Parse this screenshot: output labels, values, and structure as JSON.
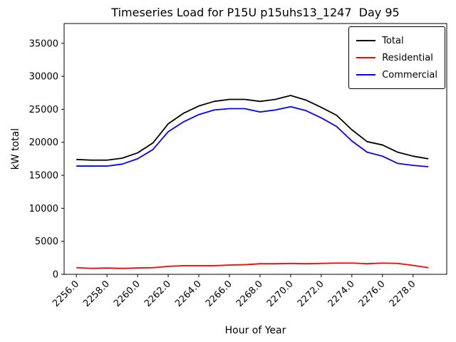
{
  "chart_data": {
    "type": "line",
    "title": "Timeseries Load for P15U p15uhs13_1247  Day 95",
    "xlabel": "Hour of Year",
    "ylabel": "kW total",
    "grid": false,
    "legend_position": "upper right",
    "xlim": [
      2255.2,
      2280.2
    ],
    "ylim": [
      0,
      38000
    ],
    "x": [
      2256,
      2257,
      2258,
      2259,
      2260,
      2261,
      2262,
      2263,
      2264,
      2265,
      2266,
      2267,
      2268,
      2269,
      2270,
      2271,
      2272,
      2273,
      2274,
      2275,
      2276,
      2277,
      2278,
      2279
    ],
    "x_ticks": [
      2256,
      2258,
      2260,
      2262,
      2264,
      2266,
      2268,
      2270,
      2272,
      2274,
      2276,
      2278
    ],
    "x_tick_labels": [
      "2256.0",
      "2258.0",
      "2260.0",
      "2262.0",
      "2264.0",
      "2266.0",
      "2268.0",
      "2270.0",
      "2272.0",
      "2274.0",
      "2276.0",
      "2278.0"
    ],
    "y_ticks": [
      0,
      5000,
      10000,
      15000,
      20000,
      25000,
      30000,
      35000
    ],
    "y_tick_labels": [
      "0",
      "5000",
      "10000",
      "15000",
      "20000",
      "25000",
      "30000",
      "35000"
    ],
    "series": [
      {
        "name": "Total",
        "color": "#000000",
        "values": [
          17400,
          17300,
          17300,
          17600,
          18400,
          19900,
          22800,
          24400,
          25500,
          26200,
          26500,
          26500,
          26200,
          26500,
          27100,
          26400,
          25300,
          24100,
          21900,
          20100,
          19600,
          18500,
          17900,
          17500
        ]
      },
      {
        "name": "Residential",
        "color": "#ff0000",
        "values": [
          1000,
          900,
          950,
          900,
          950,
          1000,
          1200,
          1300,
          1300,
          1300,
          1400,
          1450,
          1600,
          1600,
          1650,
          1600,
          1650,
          1700,
          1700,
          1600,
          1700,
          1650,
          1350,
          1000
        ]
      },
      {
        "name": "Commercial",
        "color": "#0000ff",
        "values": [
          16400,
          16400,
          16400,
          16700,
          17500,
          18900,
          21600,
          23100,
          24200,
          24900,
          25100,
          25100,
          24600,
          24900,
          25400,
          24800,
          23700,
          22400,
          20200,
          18500,
          17900,
          16800,
          16500,
          16300
        ]
      }
    ]
  }
}
